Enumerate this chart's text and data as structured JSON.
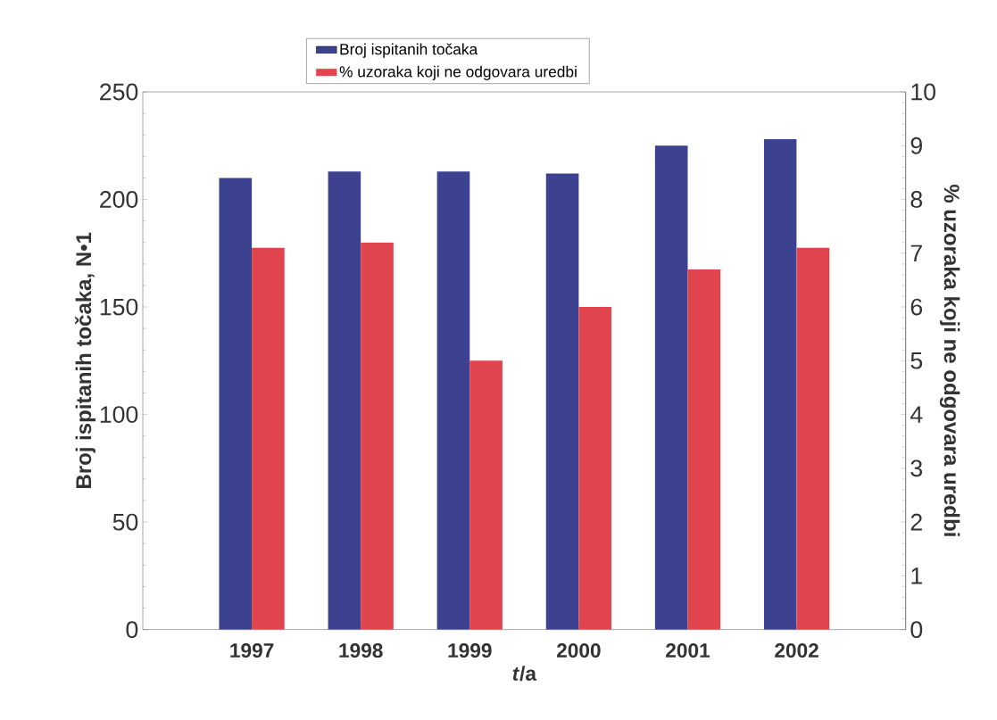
{
  "chart_data": {
    "type": "bar",
    "categories": [
      "1997",
      "1998",
      "1999",
      "2000",
      "2001",
      "2002"
    ],
    "xlabel": "*t*/a",
    "ylabel": "Broj ispitanih točaka, N•1",
    "y2label": "% uzoraka koji ne odgovara uredbi",
    "ylim": [
      0,
      250
    ],
    "yticks": [
      0,
      50,
      100,
      150,
      200,
      250
    ],
    "y2lim": [
      0,
      10
    ],
    "y2ticks": [
      0,
      1,
      2,
      3,
      4,
      5,
      6,
      7,
      8,
      9,
      10
    ],
    "legend": "top",
    "series": [
      {
        "name": "Broj ispitanih točaka",
        "color": "#3c4190",
        "values": [
          210,
          213,
          213,
          212,
          225,
          228
        ]
      },
      {
        "name": "% uzoraka koji ne odgovara uredbi",
        "color": "#e0444c",
        "axis": "y2",
        "values": [
          7.1,
          7.2,
          5.0,
          6.0,
          6.7,
          7.1
        ]
      }
    ]
  }
}
